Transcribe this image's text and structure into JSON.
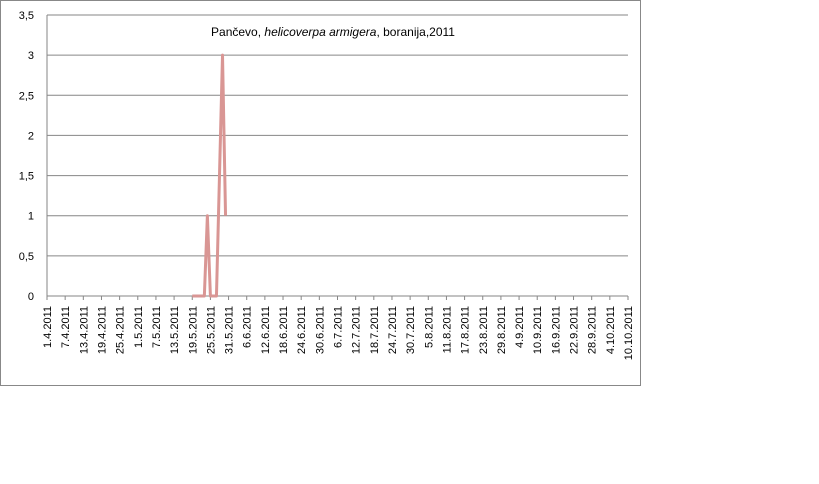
{
  "chart_data": {
    "type": "line",
    "title": {
      "start": "Pančevo, ",
      "italic": "helicoverpa armigera",
      "end": ", boranija,2011"
    },
    "x": [
      "19.5.2011",
      "23.5.2011",
      "24.5.2011",
      "25.5.2011",
      "27.5.2011",
      "29.5.2011",
      "30.5.2011"
    ],
    "series": [
      {
        "color": "#d99694",
        "values": [
          0,
          0,
          1,
          0,
          0,
          3,
          1
        ]
      }
    ],
    "xlim": [
      "1.4.2011",
      "10.10.2011"
    ],
    "xticks": [
      "1.4.2011",
      "7.4.2011",
      "13.4.2011",
      "19.4.2011",
      "25.4.2011",
      "1.5.2011",
      "7.5.2011",
      "13.5.2011",
      "19.5.2011",
      "25.5.2011",
      "31.5.2011",
      "6.6.2011",
      "12.6.2011",
      "18.6.2011",
      "24.6.2011",
      "30.6.2011",
      "6.7.2011",
      "12.7.2011",
      "18.7.2011",
      "24.7.2011",
      "30.7.2011",
      "5.8.2011",
      "11.8.2011",
      "17.8.2011",
      "23.8.2011",
      "29.8.2011",
      "4.9.2011",
      "10.9.2011",
      "16.9.2011",
      "22.9.2011",
      "28.9.2011",
      "4.10.2011",
      "10.10.2011"
    ],
    "ylim": [
      0,
      3.5
    ],
    "yticks": [
      0,
      {
        "value": 0.5,
        "label": "0,5"
      },
      1,
      {
        "value": 1.5,
        "label": "1,5"
      },
      2,
      {
        "value": 2.5,
        "label": "2,5"
      },
      3,
      {
        "value": 3.5,
        "label": "3,5"
      }
    ],
    "grid": true
  }
}
